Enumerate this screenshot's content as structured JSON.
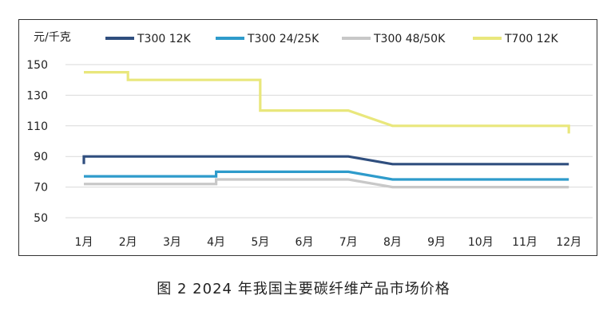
{
  "caption": "图 2 2024 年我国主要碳纤维产品市场价格",
  "chart_data": {
    "type": "line",
    "title": "",
    "ylabel": "元/千克",
    "xlabel": "",
    "categories": [
      "1月",
      "2月",
      "3月",
      "4月",
      "5月",
      "6月",
      "7月",
      "8月",
      "9月",
      "10月",
      "11月",
      "12月"
    ],
    "yticks": [
      50,
      70,
      90,
      110,
      130,
      150
    ],
    "ylim": [
      50,
      160
    ],
    "grid": true,
    "legend": "top",
    "series": [
      {
        "name": "T300 12K",
        "color": "#2F4E7E",
        "points": [
          [
            1,
            85
          ],
          [
            1,
            90
          ],
          [
            7,
            90
          ],
          [
            8,
            85
          ],
          [
            12,
            85
          ]
        ]
      },
      {
        "name": "T300 24/25K",
        "color": "#2E9BCB",
        "points": [
          [
            1,
            77
          ],
          [
            4,
            77
          ],
          [
            4,
            80
          ],
          [
            7,
            80
          ],
          [
            8,
            75
          ],
          [
            12,
            75
          ]
        ]
      },
      {
        "name": "T300 48/50K",
        "color": "#C8C8C8",
        "points": [
          [
            1,
            72
          ],
          [
            4,
            72
          ],
          [
            4,
            75
          ],
          [
            7,
            75
          ],
          [
            8,
            70
          ],
          [
            12,
            70
          ]
        ]
      },
      {
        "name": "T700 12K",
        "color": "#E9E77C",
        "points": [
          [
            1,
            145
          ],
          [
            2,
            145
          ],
          [
            2,
            140
          ],
          [
            5,
            140
          ],
          [
            5,
            120
          ],
          [
            7,
            120
          ],
          [
            8,
            110
          ],
          [
            12,
            110
          ],
          [
            12,
            105
          ]
        ]
      }
    ]
  }
}
